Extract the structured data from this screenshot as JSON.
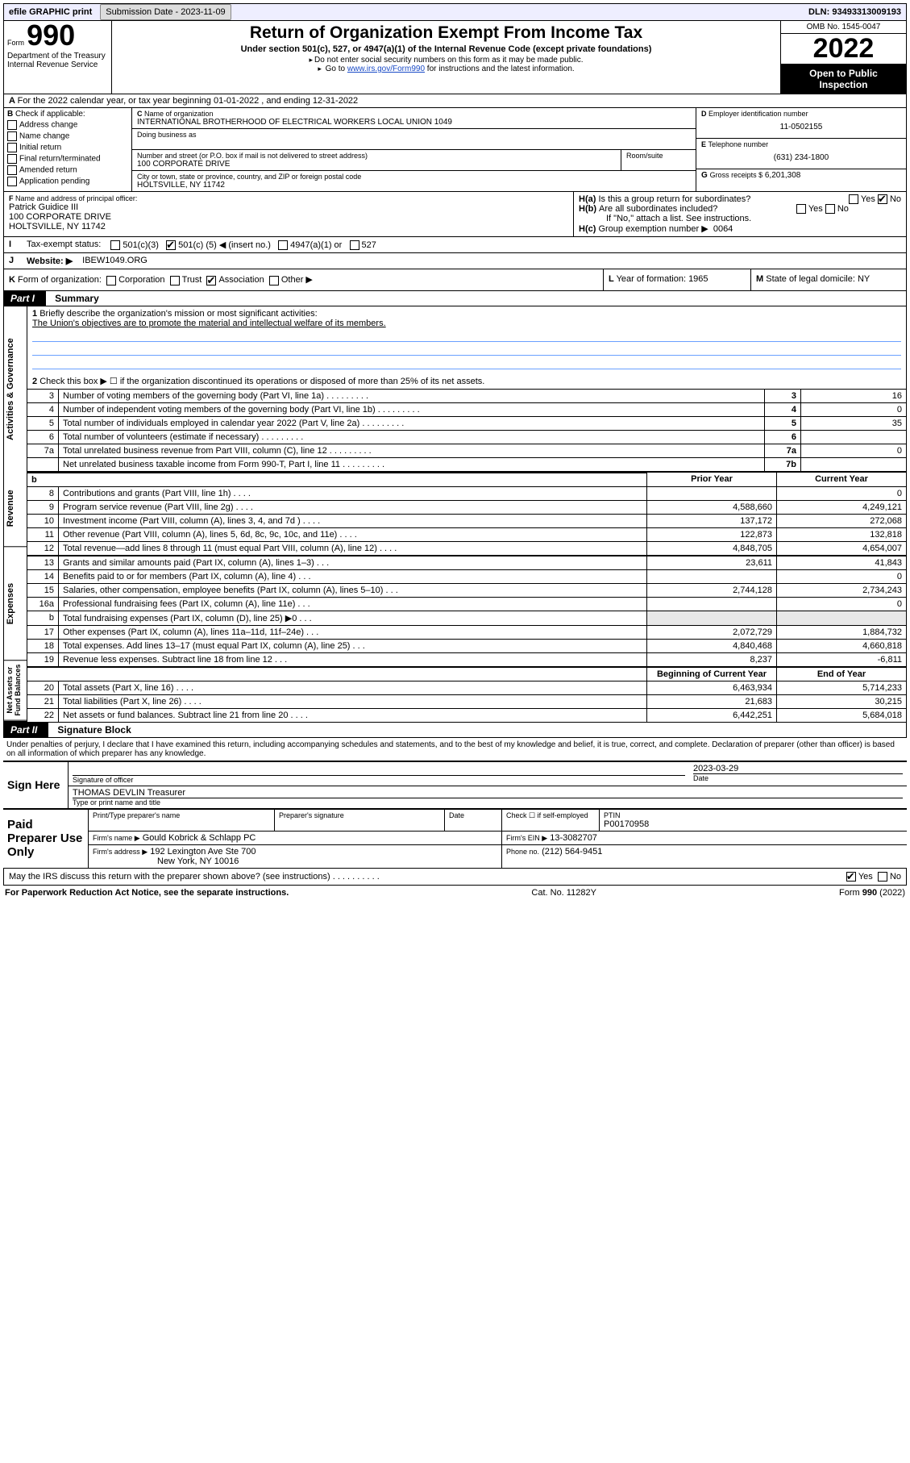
{
  "topbar": {
    "efile": "efile GRAPHIC print",
    "submission_label": "Submission Date - 2023-11-09",
    "dln_label": "DLN: 93493313009193"
  },
  "header": {
    "form_label": "Form",
    "form_num": "990",
    "title": "Return of Organization Exempt From Income Tax",
    "subtitle": "Under section 501(c), 527, or 4947(a)(1) of the Internal Revenue Code (except private foundations)",
    "note1": "Do not enter social security numbers on this form as it may be made public.",
    "note2_pre": "Go to ",
    "note2_link": "www.irs.gov/Form990",
    "note2_post": " for instructions and the latest information.",
    "dept": "Department of the Treasury\nInternal Revenue Service",
    "omb": "OMB No. 1545-0047",
    "year": "2022",
    "open": "Open to Public Inspection"
  },
  "rowA": "For the 2022 calendar year, or tax year beginning 01-01-2022   , and ending 12-31-2022",
  "B": {
    "label": "Check if applicable:",
    "opts": [
      "Address change",
      "Name change",
      "Initial return",
      "Final return/terminated",
      "Amended return",
      "Application pending"
    ]
  },
  "C": {
    "name_lbl": "Name of organization",
    "name": "INTERNATIONAL BROTHERHOOD OF ELECTRICAL WORKERS LOCAL UNION 1049",
    "dba_lbl": "Doing business as",
    "street_lbl": "Number and street (or P.O. box if mail is not delivered to street address)",
    "room_lbl": "Room/suite",
    "street": "100 CORPORATE DRIVE",
    "city_lbl": "City or town, state or province, country, and ZIP or foreign postal code",
    "city": "HOLTSVILLE, NY  11742"
  },
  "D": {
    "lbl": "Employer identification number",
    "val": "11-0502155"
  },
  "E": {
    "lbl": "Telephone number",
    "val": "(631) 234-1800"
  },
  "G": {
    "lbl": "Gross receipts $",
    "val": "6,201,308"
  },
  "F": {
    "lbl": "Name and address of principal officer:",
    "name": "Patrick Guidice III",
    "addr1": "100 CORPORATE DRIVE",
    "addr2": "HOLTSVILLE, NY  11742"
  },
  "H": {
    "a": "Is this a group return for subordinates?",
    "b": "Are all subordinates included?",
    "b_note": "If \"No,\" attach a list. See instructions.",
    "c_lbl": "Group exemption number ▶",
    "c_val": "0064"
  },
  "I": {
    "lbl": "Tax-exempt status:",
    "o1": "501(c)(3)",
    "o2_pre": "501(c) (",
    "o2_num": "5",
    "o2_post": ") ◀ (insert no.)",
    "o3": "4947(a)(1) or",
    "o4": "527"
  },
  "J": {
    "lbl": "Website: ▶",
    "val": "IBEW1049.ORG"
  },
  "K": {
    "lbl": "Form of organization:",
    "opts": [
      "Corporation",
      "Trust",
      "Association",
      "Other ▶"
    ],
    "checked": 2
  },
  "L": {
    "lbl": "Year of formation:",
    "val": "1965"
  },
  "M": {
    "lbl": "State of legal domicile:",
    "val": "NY"
  },
  "part1": {
    "hdr": "Part I",
    "title": "Summary"
  },
  "summary": {
    "q1": "Briefly describe the organization's mission or most significant activities:",
    "q1_ans": "The Union's objectives are to promote the material and intellectual welfare of its members.",
    "q2": "Check this box ▶ ☐  if the organization discontinued its operations or disposed of more than 25% of its net assets.",
    "lines_a": [
      {
        "n": "3",
        "t": "Number of voting members of the governing body (Part VI, line 1a)",
        "box": "3",
        "v": "16"
      },
      {
        "n": "4",
        "t": "Number of independent voting members of the governing body (Part VI, line 1b)",
        "box": "4",
        "v": "0"
      },
      {
        "n": "5",
        "t": "Total number of individuals employed in calendar year 2022 (Part V, line 2a)",
        "box": "5",
        "v": "35"
      },
      {
        "n": "6",
        "t": "Total number of volunteers (estimate if necessary)",
        "box": "6",
        "v": ""
      },
      {
        "n": "7a",
        "t": "Total unrelated business revenue from Part VIII, column (C), line 12",
        "box": "7a",
        "v": "0"
      },
      {
        "n": "",
        "t": "Net unrelated business taxable income from Form 990-T, Part I, line 11",
        "box": "7b",
        "v": ""
      }
    ],
    "col_hdr_prior": "Prior Year",
    "col_hdr_curr": "Current Year",
    "revenue": [
      {
        "n": "8",
        "t": "Contributions and grants (Part VIII, line 1h)",
        "p": "",
        "c": "0"
      },
      {
        "n": "9",
        "t": "Program service revenue (Part VIII, line 2g)",
        "p": "4,588,660",
        "c": "4,249,121"
      },
      {
        "n": "10",
        "t": "Investment income (Part VIII, column (A), lines 3, 4, and 7d )",
        "p": "137,172",
        "c": "272,068"
      },
      {
        "n": "11",
        "t": "Other revenue (Part VIII, column (A), lines 5, 6d, 8c, 9c, 10c, and 11e)",
        "p": "122,873",
        "c": "132,818"
      },
      {
        "n": "12",
        "t": "Total revenue—add lines 8 through 11 (must equal Part VIII, column (A), line 12)",
        "p": "4,848,705",
        "c": "4,654,007"
      }
    ],
    "expenses": [
      {
        "n": "13",
        "t": "Grants and similar amounts paid (Part IX, column (A), lines 1–3)",
        "p": "23,611",
        "c": "41,843"
      },
      {
        "n": "14",
        "t": "Benefits paid to or for members (Part IX, column (A), line 4)",
        "p": "",
        "c": "0"
      },
      {
        "n": "15",
        "t": "Salaries, other compensation, employee benefits (Part IX, column (A), lines 5–10)",
        "p": "2,744,128",
        "c": "2,734,243"
      },
      {
        "n": "16a",
        "t": "Professional fundraising fees (Part IX, column (A), line 11e)",
        "p": "",
        "c": "0"
      },
      {
        "n": "b",
        "t": "Total fundraising expenses (Part IX, column (D), line 25) ▶0",
        "p": "SHADE",
        "c": "SHADE"
      },
      {
        "n": "17",
        "t": "Other expenses (Part IX, column (A), lines 11a–11d, 11f–24e)",
        "p": "2,072,729",
        "c": "1,884,732"
      },
      {
        "n": "18",
        "t": "Total expenses. Add lines 13–17 (must equal Part IX, column (A), line 25)",
        "p": "4,840,468",
        "c": "4,660,818"
      },
      {
        "n": "19",
        "t": "Revenue less expenses. Subtract line 18 from line 12",
        "p": "8,237",
        "c": "-6,811"
      }
    ],
    "col_hdr_boy": "Beginning of Current Year",
    "col_hdr_eoy": "End of Year",
    "net": [
      {
        "n": "20",
        "t": "Total assets (Part X, line 16)",
        "p": "6,463,934",
        "c": "5,714,233"
      },
      {
        "n": "21",
        "t": "Total liabilities (Part X, line 26)",
        "p": "21,683",
        "c": "30,215"
      },
      {
        "n": "22",
        "t": "Net assets or fund balances. Subtract line 21 from line 20",
        "p": "6,442,251",
        "c": "5,684,018"
      }
    ],
    "side_labels": [
      "Activities & Governance",
      "Revenue",
      "Expenses",
      "Net Assets or\nFund Balances"
    ]
  },
  "part2": {
    "hdr": "Part II",
    "title": "Signature Block"
  },
  "sig": {
    "decl": "Under penalties of perjury, I declare that I have examined this return, including accompanying schedules and statements, and to the best of my knowledge and belief, it is true, correct, and complete. Declaration of preparer (other than officer) is based on all information of which preparer has any knowledge.",
    "sign_here": "Sign Here",
    "sig_officer_lbl": "Signature of officer",
    "date_lbl": "Date",
    "date_val": "2023-03-29",
    "officer": "THOMAS DEVLIN Treasurer",
    "type_lbl": "Type or print name and title",
    "paid": "Paid Preparer Use Only",
    "col1": "Print/Type preparer's name",
    "col2": "Preparer's signature",
    "col3": "Date",
    "col4_lbl": "Check ☐  if self-employed",
    "ptin_lbl": "PTIN",
    "ptin": "P00170958",
    "firm_name_lbl": "Firm's name   ▶",
    "firm_name": "Gould Kobrick & Schlapp PC",
    "firm_ein_lbl": "Firm's EIN ▶",
    "firm_ein": "13-3082707",
    "firm_addr_lbl": "Firm's address ▶",
    "firm_addr1": "192 Lexington Ave Ste 700",
    "firm_addr2": "New York, NY  10016",
    "phone_lbl": "Phone no.",
    "phone": "(212) 564-9451",
    "discuss": "May the IRS discuss this return with the preparer shown above? (see instructions)"
  },
  "footer": {
    "left": "For Paperwork Reduction Act Notice, see the separate instructions.",
    "mid": "Cat. No. 11282Y",
    "right": "Form 990 (2022)"
  },
  "yn": {
    "yes": "Yes",
    "no": "No"
  }
}
